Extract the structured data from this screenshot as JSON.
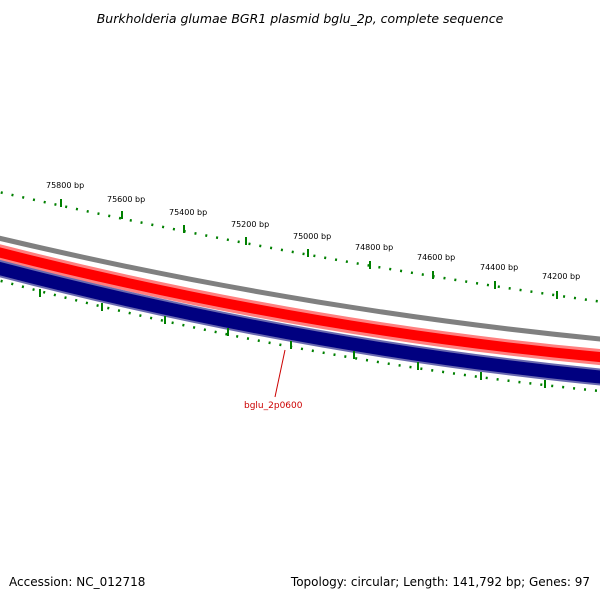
{
  "title": "Burkholderia glumae BGR1 plasmid bglu_2p, complete sequence",
  "accession": "Accession: NC_012718",
  "topology_summary": "Topology: circular; Length: 141,792 bp; Genes: 97",
  "colors": {
    "backbone": "#808080",
    "forward_track_outer": "#ff8080",
    "forward_track_inner": "#ff0000",
    "reverse_track": "#000080",
    "reverse_track_edge": "#6a6ab0",
    "ticks": "#008000",
    "label_line": "#cc0000"
  },
  "position_ticks": [
    {
      "label": "75800 bp"
    },
    {
      "label": "75600 bp"
    },
    {
      "label": "75400 bp"
    },
    {
      "label": "75200 bp"
    },
    {
      "label": "75000 bp"
    },
    {
      "label": "74800 bp"
    },
    {
      "label": "74600 bp"
    },
    {
      "label": "74400 bp"
    },
    {
      "label": "74200 bp"
    }
  ],
  "gene_labels": [
    {
      "label": "bglu_2p0600"
    }
  ]
}
